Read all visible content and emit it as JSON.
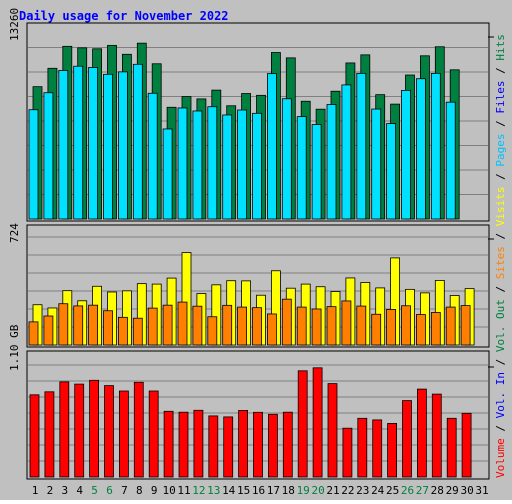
{
  "chart_data": {
    "type": "bar",
    "title": "Daily usage for November 2022",
    "title_color": "#0000ff",
    "background": "#c0c0c0",
    "grid": true,
    "days": [
      1,
      2,
      3,
      4,
      5,
      6,
      7,
      8,
      9,
      10,
      11,
      12,
      13,
      14,
      15,
      16,
      17,
      18,
      19,
      20,
      21,
      22,
      23,
      24,
      25,
      26,
      27,
      28,
      29,
      30,
      31
    ],
    "weekend_days": [
      5,
      6,
      12,
      13,
      19,
      20,
      26,
      27
    ],
    "day_label_colors": {
      "weekday": "#000000",
      "weekend": "#008040"
    },
    "panels": [
      {
        "id": "hits-panel",
        "ytick": "13260",
        "ymax": 13260,
        "series": [
          {
            "name": "Hits",
            "color": "#008040",
            "values": [
              9640,
              10980,
              12580,
              12470,
              12400,
              12650,
              12000,
              12810,
              11310,
              8140,
              8920,
              8750,
              9390,
              8250,
              9140,
              9010,
              12130,
              11740,
              8580,
              8000,
              9310,
              11370,
              11960,
              9060,
              8370,
              10490,
              11890,
              12550,
              10870,
              null,
              null
            ]
          },
          {
            "name": "Files",
            "color": "#00e0ff",
            "values": [
              7960,
              9200,
              10820,
              11130,
              11040,
              10540,
              10720,
              11270,
              9160,
              6560,
              8090,
              7870,
              8180,
              7580,
              7940,
              7700,
              10590,
              8760,
              7460,
              6880,
              8340,
              9770,
              10610,
              8010,
              6950,
              9370,
              10220,
              10610,
              8510,
              null,
              null
            ]
          },
          {
            "name": "Pages",
            "color": "#00c0ff",
            "values": [
              null,
              null,
              null,
              null,
              null,
              null,
              null,
              null,
              null,
              null,
              null,
              null,
              null,
              null,
              null,
              null,
              null,
              null,
              null,
              null,
              null,
              null,
              null,
              null,
              null,
              null,
              null,
              null,
              null,
              null,
              null
            ]
          }
        ]
      },
      {
        "id": "visits-panel",
        "ytick": "724",
        "ymax": 724,
        "series": [
          {
            "name": "Visits",
            "color": "#ffff00",
            "values": [
              275,
              253,
              371,
              302,
              401,
              362,
              370,
              419,
              416,
              457,
              631,
              351,
              411,
              439,
              438,
              340,
              507,
              388,
              416,
              398,
              365,
              458,
              427,
              390,
              595,
              380,
              356,
              441,
              338,
              385,
              null
            ]
          },
          {
            "name": "Sites",
            "color": "#ff8000",
            "values": [
              158,
              198,
              282,
              267,
              272,
              234,
              189,
              183,
              252,
              272,
              293,
              265,
              193,
              271,
              259,
              255,
              212,
              313,
              259,
              246,
              262,
              301,
              266,
              210,
              243,
              268,
              208,
              222,
              259,
              269,
              null
            ]
          }
        ]
      },
      {
        "id": "volume-panel",
        "ytick": "1.10 GB",
        "ymax": 1.1,
        "series": [
          {
            "name": "Volume",
            "color": "#ff0000",
            "values": [
              0.822,
              0.852,
              0.951,
              0.929,
              0.967,
              0.914,
              0.86,
              0.947,
              0.86,
              0.657,
              0.648,
              0.667,
              0.611,
              0.601,
              0.666,
              0.647,
              0.627,
              0.648,
              1.062,
              1.092,
              0.934,
              0.488,
              0.587,
              0.571,
              0.536,
              0.764,
              0.879,
              0.829,
              0.587,
              0.637,
              null
            ]
          }
        ]
      }
    ],
    "right_labels": [
      {
        "text": "Hits",
        "color": "#008040"
      },
      {
        "text": "Files",
        "color": "#0000ff"
      },
      {
        "text": "Pages",
        "color": "#00c0ff"
      },
      {
        "text": "Visits",
        "color": "#ffff00"
      },
      {
        "text": "Sites",
        "color": "#ff8000"
      },
      {
        "text": "Out",
        "color": "#008040"
      },
      {
        "text": "Vol.",
        "color": "#008040"
      },
      {
        "text": "In",
        "color": "#0000ff"
      },
      {
        "text": "Vol.",
        "color": "#0000ff"
      },
      {
        "text": "Volume",
        "color": "#ff0000"
      }
    ],
    "separator": "/"
  }
}
